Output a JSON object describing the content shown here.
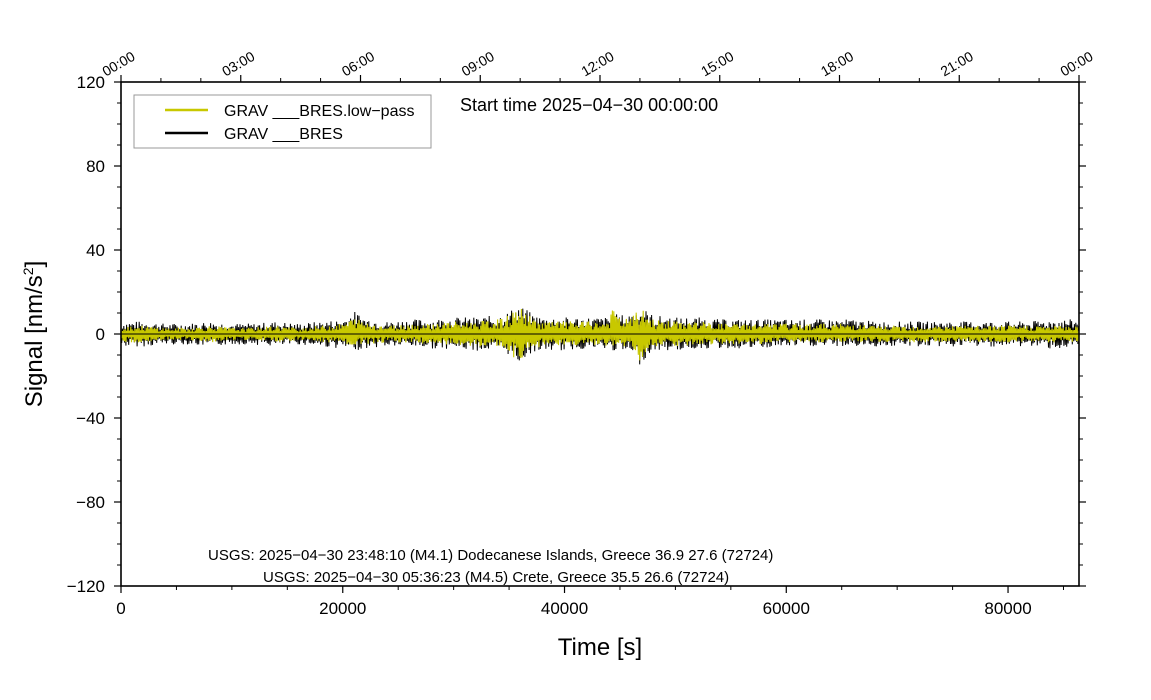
{
  "chart_data": {
    "type": "line",
    "title": "",
    "xlabel": "Time [s]",
    "ylabel_main": "Signal [nm/s",
    "ylabel_sup": "2",
    "ylabel_end": "]",
    "xlim": [
      0,
      86400
    ],
    "ylim": [
      -120,
      120
    ],
    "x_ticks": [
      0,
      20000,
      40000,
      60000,
      80000
    ],
    "x_tick_labels": [
      "0",
      "20000",
      "40000",
      "60000",
      "80000"
    ],
    "y_ticks": [
      120,
      80,
      40,
      0,
      -40,
      -80,
      -120
    ],
    "y_tick_labels": [
      "120",
      "80",
      "40",
      "0",
      "−40",
      "−80",
      "−120"
    ],
    "top_ticks": [
      0,
      10800,
      21600,
      32400,
      43200,
      54000,
      64800,
      75600,
      86400
    ],
    "top_tick_labels": [
      "00:00",
      "03:00",
      "06:00",
      "09:00",
      "12:00",
      "15:00",
      "18:00",
      "21:00",
      "00:00"
    ],
    "legend_placement": "top-left",
    "start_time": "Start time 2025−04−30 00:00:00",
    "annotations": [
      "USGS: 2025−04−30 23:48:10 (M4.1) Dodecanese Islands, Greece 36.9 27.6 (72724)",
      "USGS: 2025−04−30 05:36:23 (M4.5) Crete, Greece 35.5 26.6 (72724)"
    ],
    "series": [
      {
        "name": "GRAV ___BRES.low−pass",
        "color": "#c8c800",
        "x": [
          0,
          2000,
          4000,
          6000,
          8000,
          10000,
          12000,
          14000,
          16000,
          18000,
          20000,
          21000,
          22000,
          24000,
          26000,
          28000,
          30000,
          32000,
          34000,
          35000,
          35800,
          36200,
          37000,
          38000,
          40000,
          42000,
          44000,
          44400,
          45000,
          46000,
          46800,
          47200,
          48000,
          50000,
          52000,
          54000,
          56000,
          58000,
          60000,
          62000,
          64000,
          66000,
          68000,
          70000,
          72000,
          74000,
          76000,
          78000,
          80000,
          82000,
          84000,
          86400
        ],
        "max": [
          4,
          4,
          3,
          3,
          4,
          3,
          3,
          4,
          3,
          4,
          5,
          8,
          6,
          4,
          5,
          5,
          6,
          6,
          7,
          9,
          13,
          12,
          8,
          6,
          6,
          6,
          6,
          14,
          7,
          8,
          12,
          11,
          7,
          6,
          6,
          5,
          5,
          5,
          5,
          5,
          5,
          5,
          4,
          4,
          4,
          4,
          4,
          4,
          4,
          4,
          4,
          4
        ],
        "min": [
          -4,
          -4,
          -3,
          -3,
          -4,
          -3,
          -3,
          -4,
          -3,
          -4,
          -5,
          -6,
          -5,
          -4,
          -4,
          -5,
          -5,
          -6,
          -6,
          -8,
          -15,
          -12,
          -7,
          -6,
          -6,
          -5,
          -6,
          -6,
          -6,
          -8,
          -13,
          -10,
          -6,
          -6,
          -5,
          -5,
          -5,
          -5,
          -4,
          -4,
          -4,
          -4,
          -4,
          -4,
          -4,
          -4,
          -4,
          -4,
          -4,
          -4,
          -4,
          -4
        ]
      },
      {
        "name": "GRAV ___BRES",
        "color": "#000000",
        "x": [
          0,
          2000,
          4000,
          6000,
          8000,
          10000,
          12000,
          14000,
          16000,
          18000,
          20000,
          21000,
          22000,
          24000,
          26000,
          28000,
          30000,
          32000,
          34000,
          35000,
          35800,
          36200,
          37000,
          38000,
          40000,
          42000,
          44000,
          44400,
          45000,
          46000,
          46800,
          47200,
          48000,
          50000,
          52000,
          54000,
          56000,
          58000,
          60000,
          62000,
          64000,
          66000,
          68000,
          70000,
          72000,
          74000,
          76000,
          78000,
          80000,
          82000,
          84000,
          86400
        ],
        "max": [
          6,
          6,
          5,
          5,
          6,
          5,
          5,
          6,
          5,
          6,
          7,
          11,
          8,
          6,
          7,
          7,
          8,
          8,
          9,
          11,
          14,
          13,
          10,
          8,
          8,
          8,
          8,
          10,
          9,
          10,
          13,
          12,
          9,
          8,
          8,
          7,
          7,
          7,
          7,
          7,
          7,
          7,
          6,
          6,
          6,
          6,
          6,
          6,
          6,
          6,
          7,
          7
        ],
        "min": [
          -6,
          -6,
          -5,
          -5,
          -6,
          -5,
          -5,
          -6,
          -5,
          -6,
          -7,
          -8,
          -7,
          -6,
          -6,
          -7,
          -7,
          -8,
          -8,
          -10,
          -14,
          -13,
          -9,
          -8,
          -8,
          -7,
          -8,
          -8,
          -8,
          -10,
          -15,
          -12,
          -8,
          -8,
          -7,
          -7,
          -7,
          -7,
          -6,
          -6,
          -6,
          -6,
          -6,
          -6,
          -6,
          -6,
          -6,
          -6,
          -6,
          -6,
          -7,
          -7
        ]
      }
    ]
  }
}
